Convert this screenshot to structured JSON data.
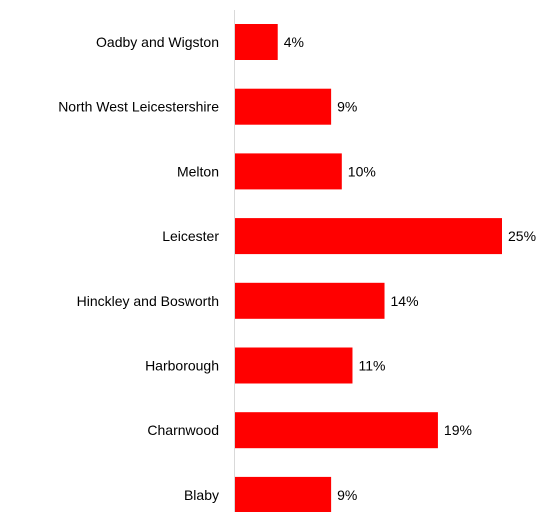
{
  "chart_data": {
    "type": "bar",
    "orientation": "horizontal",
    "categories": [
      "Oadby and Wigston",
      "North West Leicestershire",
      "Melton",
      "Leicester",
      "Hinckley and Bosworth",
      "Harborough",
      "Charnwood",
      "Blaby"
    ],
    "values": [
      4,
      9,
      10,
      25,
      14,
      11,
      19,
      9
    ],
    "value_labels": [
      "4%",
      "9%",
      "10%",
      "25%",
      "14%",
      "11%",
      "19%",
      "9%"
    ],
    "xlim": [
      0,
      25
    ],
    "grid": false,
    "legend": "none",
    "bar_color": "#ff0000",
    "axis_line_color": "#d9d9d9"
  }
}
